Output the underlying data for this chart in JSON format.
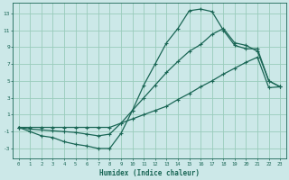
{
  "xlabel": "Humidex (Indice chaleur)",
  "background_color": "#cce8e8",
  "grid_color": "#99ccbb",
  "line_color": "#1a6655",
  "xlim": [
    -0.5,
    23.5
  ],
  "ylim": [
    -4.2,
    14.2
  ],
  "yticks": [
    -3,
    -1,
    1,
    3,
    5,
    7,
    9,
    11,
    13
  ],
  "xticks": [
    0,
    1,
    2,
    3,
    4,
    5,
    6,
    7,
    8,
    9,
    10,
    11,
    12,
    13,
    14,
    15,
    16,
    17,
    18,
    19,
    20,
    21,
    22,
    23
  ],
  "curve1_x": [
    0,
    1,
    2,
    3,
    4,
    5,
    6,
    7,
    8,
    9,
    10,
    11,
    12,
    13,
    14,
    15,
    16,
    17,
    18,
    19,
    20,
    21,
    22,
    23
  ],
  "curve1_y": [
    -0.5,
    -1.0,
    -1.5,
    -1.7,
    -2.2,
    -2.5,
    -2.7,
    -3.0,
    -3.0,
    -1.2,
    1.5,
    4.5,
    7.0,
    9.5,
    11.2,
    13.3,
    13.5,
    13.2,
    11.0,
    9.2,
    8.8,
    8.8,
    5.0,
    4.3
  ],
  "curve2_x": [
    0,
    1,
    2,
    3,
    4,
    5,
    6,
    7,
    8,
    9,
    10,
    11,
    12,
    13,
    14,
    15,
    16,
    17,
    18,
    19,
    20,
    21,
    22,
    23
  ],
  "curve2_y": [
    -0.5,
    -0.7,
    -0.8,
    -0.9,
    -1.0,
    -1.1,
    -1.3,
    -1.5,
    -1.3,
    0.0,
    1.5,
    3.0,
    4.5,
    6.0,
    7.3,
    8.5,
    9.3,
    10.5,
    11.2,
    9.5,
    9.2,
    8.5,
    5.0,
    4.3
  ],
  "curve3_x": [
    0,
    1,
    2,
    3,
    4,
    5,
    6,
    7,
    8,
    9,
    10,
    11,
    12,
    13,
    14,
    15,
    16,
    17,
    18,
    19,
    20,
    21,
    22,
    23
  ],
  "curve3_y": [
    -0.5,
    -0.5,
    -0.5,
    -0.5,
    -0.5,
    -0.5,
    -0.5,
    -0.5,
    -0.5,
    0.0,
    0.5,
    1.0,
    1.5,
    2.0,
    2.8,
    3.5,
    4.3,
    5.0,
    5.8,
    6.5,
    7.2,
    7.8,
    4.2,
    4.3
  ]
}
